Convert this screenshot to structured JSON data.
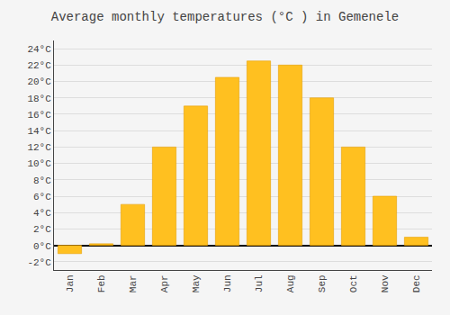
{
  "chart_data": {
    "type": "bar",
    "title": "Average monthly temperatures (°C ) in Gemenele",
    "categories": [
      "Jan",
      "Feb",
      "Mar",
      "Apr",
      "May",
      "Jun",
      "Jul",
      "Aug",
      "Sep",
      "Oct",
      "Nov",
      "Dec"
    ],
    "values": [
      -1.0,
      0.2,
      5.0,
      12.0,
      17.0,
      20.5,
      22.5,
      22.0,
      18.0,
      12.0,
      6.0,
      1.0
    ],
    "color": "#FFC020",
    "ylim": [
      -3,
      25
    ],
    "yticks": [
      {
        "value": -2,
        "label": "-2°C"
      },
      {
        "value": 0,
        "label": "0°C"
      },
      {
        "value": 2,
        "label": "2°C"
      },
      {
        "value": 4,
        "label": "4°C"
      },
      {
        "value": 6,
        "label": "6°C"
      },
      {
        "value": 8,
        "label": "8°C"
      },
      {
        "value": 10,
        "label": "10°C"
      },
      {
        "value": 12,
        "label": "12°C"
      },
      {
        "value": 14,
        "label": "14°C"
      },
      {
        "value": 16,
        "label": "16°C"
      },
      {
        "value": 18,
        "label": "18°C"
      },
      {
        "value": 20,
        "label": "20°C"
      },
      {
        "value": 22,
        "label": "22°C"
      },
      {
        "value": 24,
        "label": "24°C"
      }
    ],
    "grid": true
  }
}
